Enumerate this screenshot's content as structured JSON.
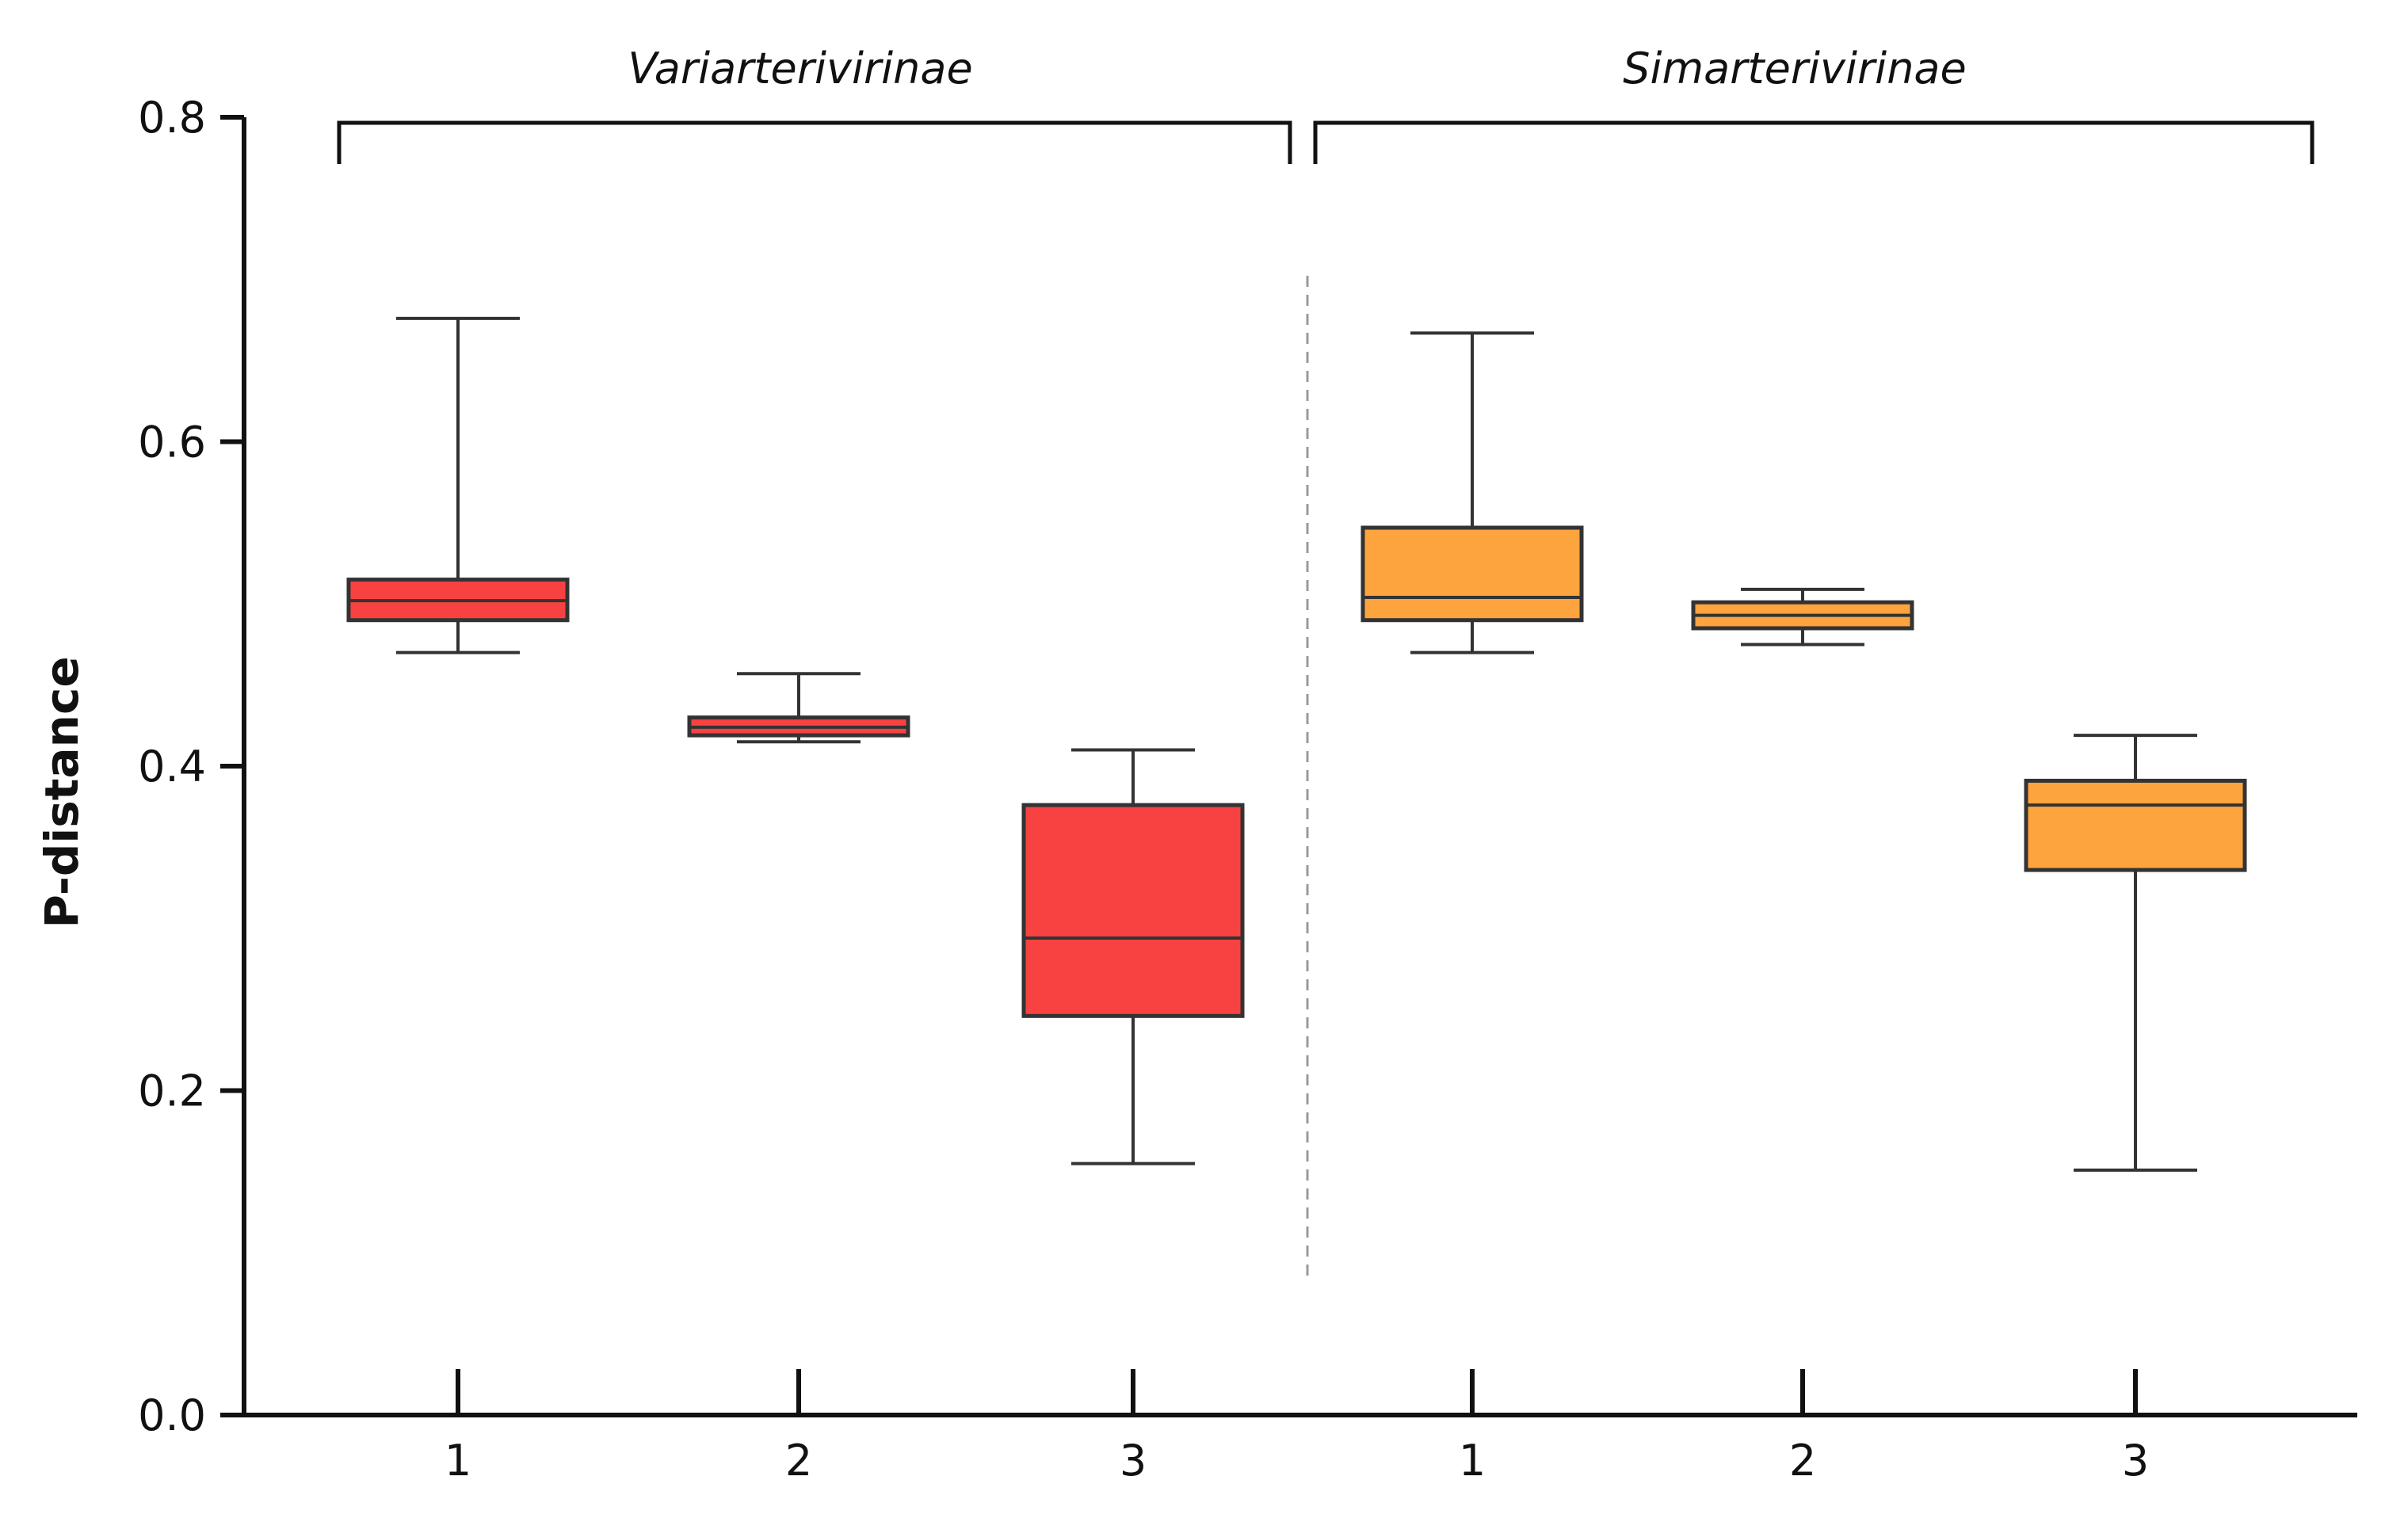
{
  "chart_data": {
    "type": "boxplot",
    "title": "",
    "xlabel": "",
    "ylabel": "P-distance",
    "ylim": [
      0,
      0.8
    ],
    "yticks": [
      "0.0",
      "0.2",
      "0.4",
      "0.6",
      "0.8"
    ],
    "grid": false,
    "colors": {
      "Variarterivirinae": "#f84242",
      "Simarterivirinae": "#fda43f"
    },
    "groups": [
      {
        "name": "Variarterivirinae",
        "boxes": [
          {
            "label": "1",
            "min": 0.47,
            "q1": 0.49,
            "median": 0.502,
            "q3": 0.515,
            "max": 0.676
          },
          {
            "label": "2",
            "min": 0.415,
            "q1": 0.419,
            "median": 0.424,
            "q3": 0.43,
            "max": 0.457
          },
          {
            "label": "3",
            "min": 0.155,
            "q1": 0.246,
            "median": 0.294,
            "q3": 0.376,
            "max": 0.41
          }
        ]
      },
      {
        "name": "Simarterivirinae",
        "boxes": [
          {
            "label": "1",
            "min": 0.47,
            "q1": 0.49,
            "median": 0.504,
            "q3": 0.547,
            "max": 0.667
          },
          {
            "label": "2",
            "min": 0.475,
            "q1": 0.485,
            "median": 0.493,
            "q3": 0.501,
            "max": 0.509
          },
          {
            "label": "3",
            "min": 0.151,
            "q1": 0.336,
            "median": 0.376,
            "q3": 0.391,
            "max": 0.419
          }
        ]
      }
    ]
  }
}
